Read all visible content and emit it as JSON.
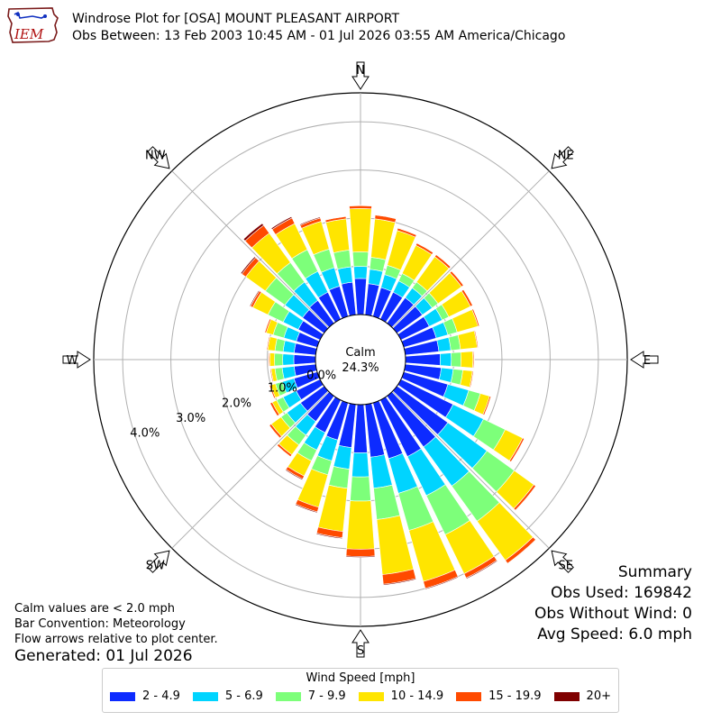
{
  "header": {
    "title": "Windrose Plot for [OSA] MOUNT PLEASANT AIRPORT",
    "subtitle": "Obs Between: 13 Feb 2003 10:45 AM - 01 Jul 2026 03:55 AM America/Chicago",
    "logo_text": "IEM"
  },
  "notes": {
    "line1": "Calm values are < 2.0 mph",
    "line2": "Bar Convention: Meteorology",
    "line3": "Flow arrows relative to plot center.",
    "generated": "Generated: 01 Jul 2026"
  },
  "summary": {
    "title": "Summary",
    "obs_used": "Obs Used: 169842",
    "obs_without_wind": "Obs Without Wind: 0",
    "avg_speed": "Avg Speed: 6.0 mph"
  },
  "legend": {
    "title": "Wind Speed [mph]"
  },
  "chart_data": {
    "type": "windrose",
    "calm_label": "Calm",
    "calm_value": "24.3%",
    "cardinal_labels": [
      {
        "dir": 0,
        "label": "N"
      },
      {
        "dir": 45,
        "label": "NE"
      },
      {
        "dir": 90,
        "label": "E"
      },
      {
        "dir": 135,
        "label": "SE"
      },
      {
        "dir": 180,
        "label": "S"
      },
      {
        "dir": 225,
        "label": "SW"
      },
      {
        "dir": 270,
        "label": "W"
      },
      {
        "dir": 315,
        "label": "NW"
      }
    ],
    "radial_ticks": [
      "0.0%",
      "1.0%",
      "2.0%",
      "3.0%",
      "4.0%"
    ],
    "radial_max": 4.6,
    "speed_bins": [
      {
        "label": "2 - 4.9",
        "color": "#0d2bff"
      },
      {
        "label": "5 - 6.9",
        "color": "#00d4ff"
      },
      {
        "label": "7 - 9.9",
        "color": "#7dff7a"
      },
      {
        "label": "10 - 14.9",
        "color": "#ffe500"
      },
      {
        "label": "15 - 19.9",
        "color": "#ff4a00"
      },
      {
        "label": "20+",
        "color": "#7f0000"
      }
    ],
    "directions": [
      0,
      10,
      20,
      30,
      40,
      50,
      60,
      70,
      80,
      90,
      100,
      110,
      120,
      130,
      140,
      150,
      160,
      170,
      180,
      190,
      200,
      210,
      220,
      230,
      240,
      250,
      260,
      270,
      280,
      290,
      300,
      310,
      320,
      330,
      340,
      350
    ],
    "cumulative_percent": [
      [
        0.75,
        1.0,
        1.3,
        2.2,
        2.26,
        2.27
      ],
      [
        0.65,
        0.95,
        1.2,
        2.0,
        2.08,
        2.09
      ],
      [
        0.62,
        0.9,
        1.1,
        1.85,
        1.9,
        1.91
      ],
      [
        0.62,
        0.88,
        1.05,
        1.7,
        1.75,
        1.76
      ],
      [
        0.65,
        0.9,
        1.05,
        1.7,
        1.75,
        1.76
      ],
      [
        0.65,
        0.9,
        1.05,
        1.65,
        1.7,
        1.71
      ],
      [
        0.65,
        0.95,
        1.1,
        1.6,
        1.65,
        1.66
      ],
      [
        0.7,
        0.95,
        1.15,
        1.6,
        1.63,
        1.64
      ],
      [
        0.7,
        0.95,
        1.15,
        1.5,
        1.52,
        1.53
      ],
      [
        0.72,
        0.95,
        1.15,
        1.4,
        1.42,
        1.43
      ],
      [
        0.75,
        1.0,
        1.2,
        1.4,
        1.42,
        1.43
      ],
      [
        0.95,
        1.4,
        1.65,
        1.85,
        1.88,
        1.89
      ],
      [
        1.2,
        1.9,
        2.4,
        2.8,
        2.84,
        2.85
      ],
      [
        1.3,
        2.3,
        3.0,
        3.5,
        3.55,
        3.56
      ],
      [
        1.3,
        2.3,
        3.2,
        4.2,
        4.28,
        4.29
      ],
      [
        1.3,
        2.2,
        3.1,
        4.0,
        4.1,
        4.12
      ],
      [
        1.2,
        1.95,
        2.75,
        3.85,
        4.0,
        4.02
      ],
      [
        1.1,
        1.75,
        2.4,
        3.55,
        3.75,
        3.77
      ],
      [
        1.0,
        1.5,
        2.0,
        3.0,
        3.15,
        3.17
      ],
      [
        0.9,
        1.35,
        1.75,
        2.65,
        2.78,
        2.8
      ],
      [
        0.8,
        1.25,
        1.55,
        2.25,
        2.35,
        2.37
      ],
      [
        0.75,
        1.15,
        1.4,
        1.75,
        1.82,
        1.84
      ],
      [
        0.65,
        1.0,
        1.25,
        1.5,
        1.55,
        1.56
      ],
      [
        0.6,
        0.95,
        1.1,
        1.35,
        1.4,
        1.41
      ],
      [
        0.55,
        0.85,
        1.0,
        1.1,
        1.15,
        1.16
      ],
      [
        0.5,
        0.75,
        0.9,
        1.0,
        1.03,
        1.04
      ],
      [
        0.45,
        0.7,
        0.85,
        0.93,
        0.95,
        0.96
      ],
      [
        0.45,
        0.68,
        0.85,
        0.95,
        0.97,
        0.98
      ],
      [
        0.45,
        0.68,
        0.85,
        1.0,
        1.02,
        1.03
      ],
      [
        0.45,
        0.72,
        0.95,
        1.1,
        1.13,
        1.14
      ],
      [
        0.5,
        0.85,
        1.2,
        1.55,
        1.6,
        1.62
      ],
      [
        0.55,
        1.0,
        1.5,
        2.0,
        2.1,
        2.13
      ],
      [
        0.58,
        1.05,
        1.55,
        2.3,
        2.5,
        2.55
      ],
      [
        0.62,
        1.1,
        1.6,
        2.2,
        2.33,
        2.36
      ],
      [
        0.65,
        1.05,
        1.45,
        2.05,
        2.12,
        2.14
      ],
      [
        0.68,
        1.0,
        1.35,
        2.0,
        2.05,
        2.06
      ]
    ]
  }
}
